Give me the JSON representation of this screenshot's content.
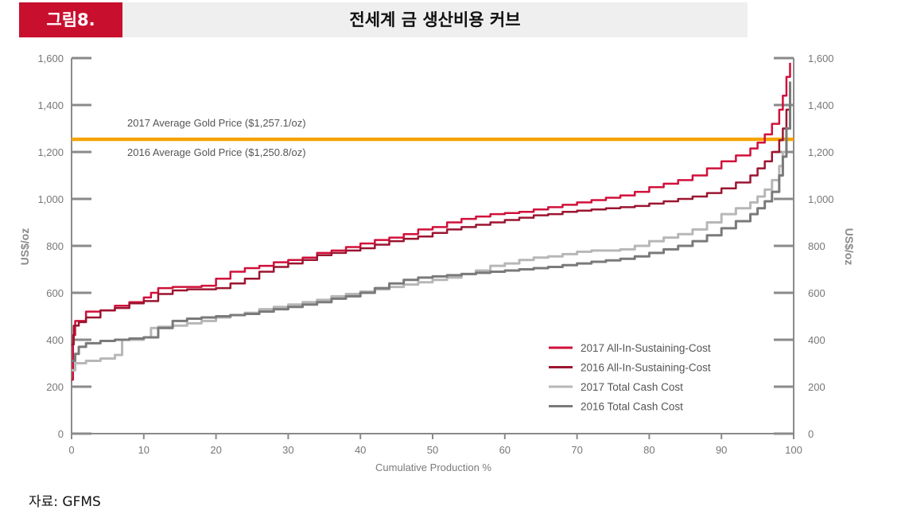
{
  "header": {
    "figure_label": "그림8.",
    "title": "전세계 금 생산비용 커브"
  },
  "source": "자료: GFMS",
  "chart_data": {
    "type": "line",
    "xlabel": "Cumulative Production %",
    "ylabel": "US$/oz",
    "ylabel_right": "US$/oz",
    "xlim": [
      0,
      100
    ],
    "ylim": [
      0,
      1600
    ],
    "x_ticks": [
      0,
      10,
      20,
      30,
      40,
      50,
      60,
      70,
      80,
      90,
      100
    ],
    "y_ticks": [
      0,
      200,
      400,
      600,
      800,
      1000,
      1200,
      1400,
      1600
    ],
    "y_tick_labels": [
      "0",
      "200",
      "400",
      "600",
      "800",
      "1,000",
      "1,200",
      "1,400",
      "1,600"
    ],
    "legend_position": "bottom-right",
    "colors": {
      "2017_aisc": "#d0103a",
      "2016_aisc": "#9b1530",
      "2017_tcc": "#b7b7b7",
      "2016_tcc": "#7a7a7a",
      "gold_price": "#f5a300",
      "axis": "#8a8a8a"
    },
    "reference_lines": [
      {
        "label": "2017 Average Gold Price ($1,257.1/oz)",
        "value": 1257.1
      },
      {
        "label": "2016 Average Gold Price ($1,250.8/oz)",
        "value": 1250.8
      }
    ],
    "series": [
      {
        "name": "2017 All-In-Sustaining-Cost",
        "color": "#d0103a",
        "x": [
          0,
          0.2,
          0.5,
          2,
          4,
          6,
          8,
          10,
          11,
          12,
          14,
          16,
          18,
          20,
          22,
          24,
          26,
          28,
          30,
          32,
          34,
          36,
          38,
          40,
          42,
          44,
          46,
          48,
          50,
          52,
          54,
          56,
          58,
          60,
          62,
          64,
          66,
          68,
          70,
          72,
          74,
          76,
          78,
          80,
          82,
          84,
          86,
          88,
          90,
          92,
          94,
          95,
          96,
          97,
          98,
          98.5,
          99,
          99.5
        ],
        "y": [
          230,
          420,
          480,
          520,
          525,
          545,
          560,
          580,
          600,
          620,
          625,
          625,
          630,
          660,
          690,
          705,
          715,
          730,
          740,
          750,
          770,
          780,
          795,
          810,
          825,
          835,
          850,
          870,
          880,
          900,
          915,
          925,
          935,
          940,
          945,
          955,
          965,
          975,
          985,
          995,
          1005,
          1015,
          1030,
          1050,
          1065,
          1080,
          1100,
          1130,
          1160,
          1185,
          1215,
          1240,
          1275,
          1320,
          1380,
          1440,
          1520,
          1580
        ]
      },
      {
        "name": "2016 All-In-Sustaining-Cost",
        "color": "#9b1530",
        "x": [
          0,
          0.3,
          1,
          2,
          4,
          6,
          8,
          10,
          12,
          14,
          16,
          18,
          20,
          22,
          24,
          26,
          28,
          30,
          32,
          34,
          36,
          38,
          40,
          42,
          44,
          46,
          48,
          50,
          52,
          54,
          56,
          58,
          60,
          62,
          64,
          66,
          68,
          70,
          72,
          74,
          76,
          78,
          80,
          82,
          84,
          86,
          88,
          90,
          92,
          94,
          95,
          96,
          97,
          98,
          98.5,
          99,
          99.5
        ],
        "y": [
          380,
          460,
          475,
          495,
          525,
          535,
          555,
          565,
          595,
          610,
          615,
          615,
          620,
          640,
          660,
          690,
          710,
          725,
          740,
          760,
          770,
          780,
          790,
          805,
          820,
          830,
          840,
          855,
          870,
          880,
          890,
          900,
          910,
          920,
          930,
          935,
          945,
          950,
          955,
          960,
          965,
          970,
          980,
          990,
          1000,
          1010,
          1025,
          1045,
          1070,
          1100,
          1130,
          1160,
          1200,
          1250,
          1300,
          1380,
          1480
        ]
      },
      {
        "name": "2017 Total Cash Cost",
        "color": "#b7b7b7",
        "x": [
          0,
          0.5,
          2,
          4,
          6,
          7,
          10,
          11,
          12,
          14,
          16,
          18,
          20,
          22,
          24,
          26,
          28,
          30,
          32,
          34,
          36,
          38,
          40,
          42,
          44,
          46,
          48,
          50,
          52,
          54,
          56,
          58,
          60,
          62,
          64,
          66,
          68,
          70,
          72,
          74,
          76,
          78,
          80,
          82,
          84,
          86,
          88,
          90,
          92,
          94,
          95,
          96,
          97,
          98,
          98.5,
          99,
          99.5
        ],
        "y": [
          270,
          300,
          310,
          320,
          335,
          400,
          410,
          450,
          455,
          460,
          470,
          480,
          495,
          505,
          515,
          530,
          540,
          550,
          560,
          570,
          585,
          595,
          605,
          615,
          625,
          635,
          645,
          655,
          665,
          680,
          695,
          715,
          725,
          740,
          750,
          755,
          765,
          775,
          780,
          780,
          785,
          800,
          820,
          835,
          850,
          870,
          900,
          935,
          960,
          985,
          1010,
          1040,
          1080,
          1140,
          1200,
          1300,
          1450
        ]
      },
      {
        "name": "2016 Total Cash Cost",
        "color": "#7a7a7a",
        "x": [
          0,
          0.5,
          1,
          2,
          4,
          6,
          8,
          10,
          12,
          14,
          16,
          18,
          20,
          22,
          24,
          26,
          28,
          30,
          32,
          34,
          36,
          38,
          40,
          42,
          44,
          46,
          48,
          50,
          52,
          54,
          56,
          58,
          60,
          62,
          64,
          66,
          68,
          70,
          72,
          74,
          76,
          78,
          80,
          82,
          84,
          86,
          88,
          90,
          92,
          94,
          95,
          96,
          97,
          98,
          98.5,
          99,
          99.5
        ],
        "y": [
          310,
          340,
          370,
          385,
          395,
          400,
          405,
          410,
          450,
          480,
          490,
          495,
          500,
          505,
          510,
          520,
          530,
          540,
          550,
          560,
          575,
          585,
          600,
          620,
          640,
          655,
          665,
          670,
          675,
          680,
          685,
          690,
          695,
          700,
          705,
          710,
          718,
          725,
          732,
          738,
          745,
          755,
          770,
          785,
          800,
          820,
          845,
          875,
          905,
          935,
          960,
          990,
          1030,
          1100,
          1180,
          1300,
          1500
        ]
      }
    ]
  }
}
